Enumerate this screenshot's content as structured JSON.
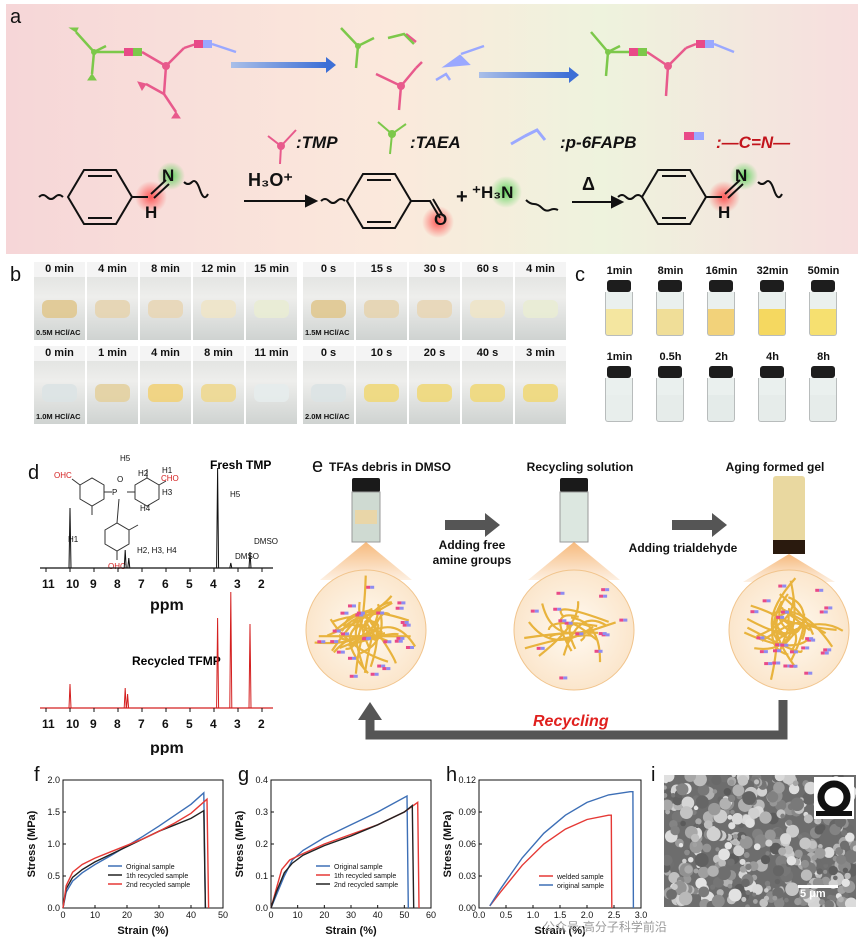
{
  "panels": {
    "a": {
      "letter": "a",
      "legend": {
        "tmp": ":TMP",
        "taea": ":TAEA",
        "p6fapb": ":p-6FAPB",
        "imine": ":—C=N—"
      },
      "reaction": {
        "reagent": "H₃O⁺",
        "plus": "+",
        "amine": "⁺H₃N",
        "heat": "Δ",
        "atom_n": "N",
        "atom_h": "H",
        "atom_o": "O"
      }
    },
    "b": {
      "letter": "b",
      "row1": {
        "times_left": [
          "0 min",
          "4 min",
          "8 min",
          "12 min",
          "15 min"
        ],
        "times_right": [
          "0 s",
          "15 s",
          "30 s",
          "60 s",
          "4 min"
        ],
        "label_left": "0.5M HCl/AC",
        "label_right": "1.5M HCl/AC"
      },
      "row2": {
        "times_left": [
          "0 min",
          "1 min",
          "4 min",
          "8 min",
          "11 min"
        ],
        "times_right": [
          "0 s",
          "10 s",
          "20 s",
          "40 s",
          "3 min"
        ],
        "label_left": "1.0M HCl/AC",
        "label_right": "2.0M HCl/AC"
      }
    },
    "c": {
      "letter": "c",
      "row1": [
        "1min",
        "8min",
        "16min",
        "32min",
        "50min"
      ],
      "row2": [
        "1min",
        "0.5h",
        "2h",
        "4h",
        "8h"
      ]
    },
    "d": {
      "letter": "d",
      "fresh_title": "Fresh TMP",
      "recycled_title": "Recycled TFMP",
      "peak_labels": {
        "h1": "H1",
        "h234": "H2, H3, H4",
        "h5": "H5",
        "dmso": "DMSO",
        "dmso2": "DMSO"
      },
      "structure_labels": {
        "cho": "OHC",
        "cho2": "CHO",
        "cho3": "OHC",
        "h5": "H5",
        "h2": "H2",
        "h1": "H1",
        "h3": "H3",
        "h4": "H4",
        "p": "P",
        "o": "O"
      },
      "xticks": [
        "11",
        "10",
        "9",
        "8",
        "7",
        "6",
        "5",
        "4",
        "3",
        "2"
      ],
      "xlabel": "ppm",
      "xlabel2": "ppm"
    },
    "e": {
      "letter": "e",
      "steps": [
        "TFAs debris in DMSO",
        "Recycling solution",
        "Aging formed gel"
      ],
      "arrow_labels": [
        "Adding free",
        "amine groups",
        "Adding trialdehyde"
      ],
      "recycling": "Recycling"
    },
    "f": {
      "letter": "f"
    },
    "g": {
      "letter": "g"
    },
    "h": {
      "letter": "h"
    },
    "i": {
      "letter": "i",
      "scale_bar": "5 μm",
      "watermark": "公众号·高分子科学前沿"
    }
  },
  "colors": {
    "red": "#e53935",
    "blue": "#3d6fb6",
    "dark": "#222222",
    "fiber": "#e8b33d",
    "accent_red": "#e0201e"
  },
  "chart_data": [
    {
      "panel": "f",
      "type": "line",
      "xlabel": "Strain (%)",
      "ylabel": "Stress (MPa)",
      "xlim": [
        0,
        50
      ],
      "ylim": [
        0,
        2.0
      ],
      "xticks": [
        0,
        10,
        20,
        30,
        40,
        50
      ],
      "yticks": [
        0.0,
        0.5,
        1.0,
        1.5,
        2.0
      ],
      "legend_position": "bottom-right",
      "series": [
        {
          "name": "Original sample",
          "color": "#3d6fb6",
          "x": [
            0,
            1,
            3,
            6,
            10,
            15,
            20,
            25,
            30,
            35,
            40,
            44,
            44.5
          ],
          "y": [
            0,
            0.25,
            0.42,
            0.55,
            0.68,
            0.82,
            0.97,
            1.12,
            1.28,
            1.45,
            1.62,
            1.8,
            0
          ]
        },
        {
          "name": "1th recycled sample",
          "color": "#222222",
          "x": [
            0,
            1,
            3,
            6,
            10,
            15,
            20,
            25,
            30,
            35,
            40,
            44,
            44.5
          ],
          "y": [
            0,
            0.3,
            0.48,
            0.6,
            0.72,
            0.84,
            0.96,
            1.08,
            1.2,
            1.3,
            1.4,
            1.52,
            0
          ]
        },
        {
          "name": "2nd recycled sample",
          "color": "#e53935",
          "x": [
            0,
            1,
            3,
            6,
            10,
            15,
            20,
            25,
            30,
            35,
            40,
            45,
            45.5
          ],
          "y": [
            0,
            0.35,
            0.56,
            0.68,
            0.78,
            0.88,
            0.98,
            1.08,
            1.2,
            1.33,
            1.48,
            1.7,
            0
          ]
        }
      ]
    },
    {
      "panel": "g",
      "type": "line",
      "xlabel": "Strain (%)",
      "ylabel": "Stress (MPa)",
      "xlim": [
        0,
        60
      ],
      "ylim": [
        0,
        0.4
      ],
      "xticks": [
        0,
        10,
        20,
        30,
        40,
        50,
        60
      ],
      "yticks": [
        0.0,
        0.1,
        0.2,
        0.3,
        0.4
      ],
      "legend_position": "bottom-right",
      "series": [
        {
          "name": "Original sample",
          "color": "#3d6fb6",
          "x": [
            0,
            2,
            5,
            8,
            12,
            20,
            30,
            40,
            51,
            51.5
          ],
          "y": [
            0,
            0.04,
            0.1,
            0.15,
            0.18,
            0.22,
            0.26,
            0.3,
            0.35,
            0
          ]
        },
        {
          "name": "1th recycled sample",
          "color": "#e53935",
          "x": [
            0,
            2,
            4,
            7,
            12,
            20,
            30,
            40,
            50,
            55,
            55.5
          ],
          "y": [
            0,
            0.06,
            0.12,
            0.15,
            0.17,
            0.2,
            0.23,
            0.26,
            0.3,
            0.33,
            0
          ]
        },
        {
          "name": "2nd recycled sample",
          "color": "#222222",
          "x": [
            0,
            2,
            5,
            8,
            12,
            20,
            30,
            40,
            50,
            53,
            53.5
          ],
          "y": [
            0,
            0.05,
            0.11,
            0.14,
            0.165,
            0.195,
            0.225,
            0.26,
            0.3,
            0.32,
            0
          ]
        }
      ]
    },
    {
      "panel": "h",
      "type": "line",
      "xlabel": "Strain (%)",
      "ylabel": "Stress (MPa)",
      "xlim": [
        0,
        3.0
      ],
      "ylim": [
        0,
        0.12
      ],
      "xticks": [
        0.0,
        0.5,
        1.0,
        1.5,
        2.0,
        2.5,
        3.0
      ],
      "yticks": [
        0.0,
        0.03,
        0.06,
        0.09,
        0.12
      ],
      "legend_position": "bottom-center",
      "series": [
        {
          "name": "welded sample",
          "color": "#e53935",
          "x": [
            0.2,
            0.4,
            0.8,
            1.2,
            1.6,
            2.0,
            2.4,
            2.45,
            2.46
          ],
          "y": [
            0.002,
            0.015,
            0.04,
            0.06,
            0.074,
            0.083,
            0.087,
            0.087,
            0
          ]
        },
        {
          "name": "original sample",
          "color": "#3d6fb6",
          "x": [
            0.2,
            0.4,
            0.8,
            1.2,
            1.6,
            2.0,
            2.4,
            2.8,
            2.85,
            2.86
          ],
          "y": [
            0.002,
            0.018,
            0.047,
            0.07,
            0.087,
            0.099,
            0.106,
            0.109,
            0.109,
            0
          ]
        }
      ]
    }
  ]
}
